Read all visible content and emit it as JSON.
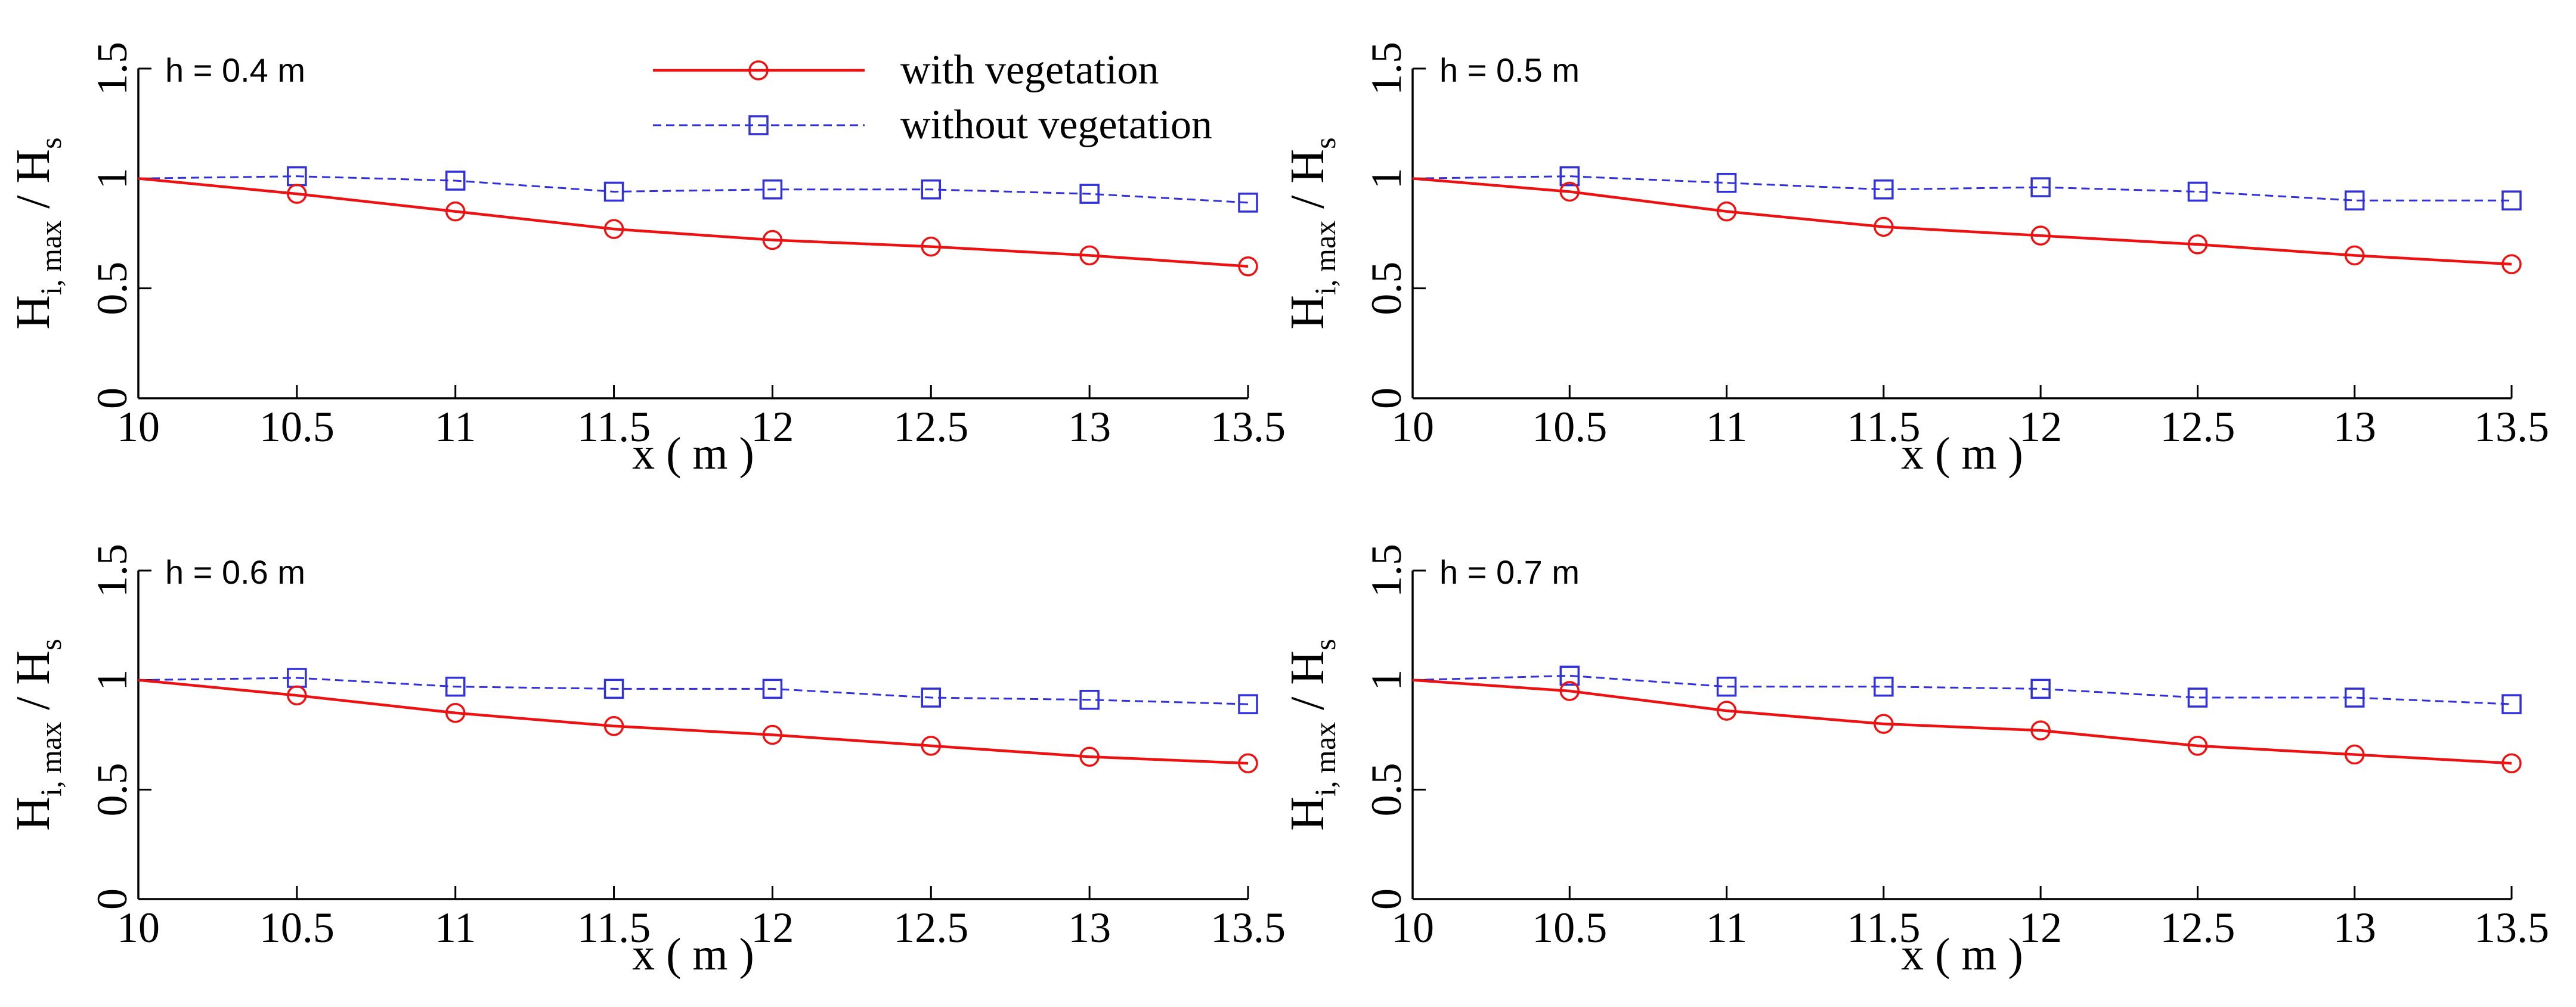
{
  "legend": {
    "position": "top-center",
    "entries": [
      {
        "label": "with vegetation",
        "series_key": "with"
      },
      {
        "label": "without vegetation",
        "series_key": "without"
      }
    ]
  },
  "colors": {
    "with": "#ee1111",
    "without": "#3030dd",
    "axis": "#000000",
    "background": "#ffffff"
  },
  "axis_text": {
    "xlabel": "x ( m )",
    "ylabel_main": "H",
    "ylabel_sub": "i, max",
    "ylabel_sep": " / H",
    "ylabel_sub2": "s"
  },
  "chart_data": [
    {
      "type": "line",
      "title": "h = 0.4 m",
      "xlim": [
        10,
        13.5
      ],
      "ylim": [
        0,
        1.5
      ],
      "x": [
        10,
        10.5,
        11,
        11.5,
        12,
        12.5,
        13,
        13.5
      ],
      "xticks": [
        "10",
        "10.5",
        "11",
        "11.5",
        "12",
        "12.5",
        "13",
        "13.5"
      ],
      "yticks": [
        "0",
        "0.5",
        "1",
        "1.5"
      ],
      "series": [
        {
          "name": "with vegetation",
          "key": "with",
          "values": [
            1.0,
            0.93,
            0.85,
            0.77,
            0.72,
            0.69,
            0.65,
            0.6
          ]
        },
        {
          "name": "without vegetation",
          "key": "without",
          "values": [
            1.0,
            1.01,
            0.99,
            0.94,
            0.95,
            0.95,
            0.93,
            0.89
          ]
        }
      ]
    },
    {
      "type": "line",
      "title": "h = 0.5 m",
      "xlim": [
        10,
        13.5
      ],
      "ylim": [
        0,
        1.5
      ],
      "x": [
        10,
        10.5,
        11,
        11.5,
        12,
        12.5,
        13,
        13.5
      ],
      "xticks": [
        "10",
        "10.5",
        "11",
        "11.5",
        "12",
        "12.5",
        "13",
        "13.5"
      ],
      "yticks": [
        "0",
        "0.5",
        "1",
        "1.5"
      ],
      "series": [
        {
          "name": "with vegetation",
          "key": "with",
          "values": [
            1.0,
            0.94,
            0.85,
            0.78,
            0.74,
            0.7,
            0.65,
            0.61
          ]
        },
        {
          "name": "without vegetation",
          "key": "without",
          "values": [
            1.0,
            1.01,
            0.98,
            0.95,
            0.96,
            0.94,
            0.9,
            0.9
          ]
        }
      ]
    },
    {
      "type": "line",
      "title": "h = 0.6 m",
      "xlim": [
        10,
        13.5
      ],
      "ylim": [
        0,
        1.5
      ],
      "x": [
        10,
        10.5,
        11,
        11.5,
        12,
        12.5,
        13,
        13.5
      ],
      "xticks": [
        "10",
        "10.5",
        "11",
        "11.5",
        "12",
        "12.5",
        "13",
        "13.5"
      ],
      "yticks": [
        "0",
        "0.5",
        "1",
        "1.5"
      ],
      "series": [
        {
          "name": "with vegetation",
          "key": "with",
          "values": [
            1.0,
            0.93,
            0.85,
            0.79,
            0.75,
            0.7,
            0.65,
            0.62
          ]
        },
        {
          "name": "without vegetation",
          "key": "without",
          "values": [
            1.0,
            1.01,
            0.97,
            0.96,
            0.96,
            0.92,
            0.91,
            0.89
          ]
        }
      ]
    },
    {
      "type": "line",
      "title": "h = 0.7 m",
      "xlim": [
        10,
        13.5
      ],
      "ylim": [
        0,
        1.5
      ],
      "x": [
        10,
        10.5,
        11,
        11.5,
        12,
        12.5,
        13,
        13.5
      ],
      "xticks": [
        "10",
        "10.5",
        "11",
        "11.5",
        "12",
        "12.5",
        "13",
        "13.5"
      ],
      "yticks": [
        "0",
        "0.5",
        "1",
        "1.5"
      ],
      "series": [
        {
          "name": "with vegetation",
          "key": "with",
          "values": [
            1.0,
            0.95,
            0.86,
            0.8,
            0.77,
            0.7,
            0.66,
            0.62
          ]
        },
        {
          "name": "without vegetation",
          "key": "without",
          "values": [
            1.0,
            1.02,
            0.97,
            0.97,
            0.96,
            0.92,
            0.92,
            0.89
          ]
        }
      ]
    }
  ]
}
